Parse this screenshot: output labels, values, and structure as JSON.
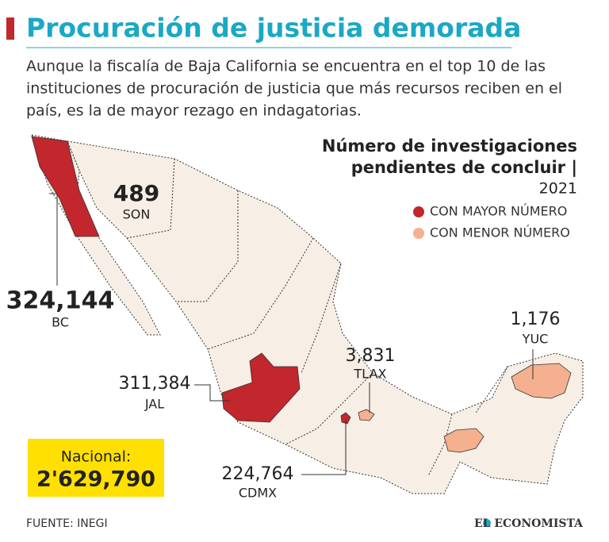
{
  "header": {
    "title": "Procuración de justicia demorada",
    "subtitle_lines": [
      "Aunque la fiscalía de Baja California se encuentra en el top 10 de las",
      "instituciones de procuración de justicia que más recursos reciben en el",
      "país, es la de mayor rezago en indagatorias."
    ]
  },
  "legend": {
    "title_lines": [
      "Número de investigaciones",
      "pendientes de concluir |"
    ],
    "year": "2021",
    "items": [
      {
        "label": "CON MAYOR NÚMERO",
        "color": "#c1272d"
      },
      {
        "label": "CON MENOR NÚMERO",
        "color": "#f4b08f"
      }
    ]
  },
  "regions": [
    {
      "value": "489",
      "state": "SON"
    },
    {
      "value": "324,144",
      "state": "BC"
    },
    {
      "value": "311,384",
      "state": "JAL"
    },
    {
      "value": "3,831",
      "state": "TLAX"
    },
    {
      "value": "1,176",
      "state": "YUC"
    },
    {
      "value": "224,764",
      "state": "CDMX"
    }
  ],
  "national": {
    "label": "Nacional:",
    "value": "2'629,790"
  },
  "footer": {
    "source": "FUENTE: INEGI",
    "brand": "EL ECONOMISTA"
  }
}
